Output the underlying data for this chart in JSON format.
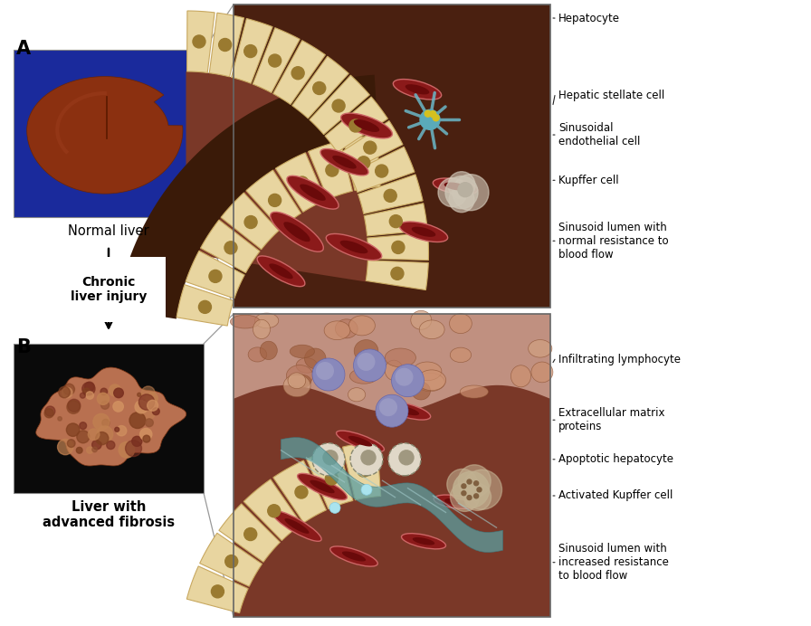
{
  "bg_color": "#ffffff",
  "label_A": "A",
  "label_B": "B",
  "text_normal_liver": "Normal liver",
  "text_chronic": "Chronic\nliver injury",
  "text_fibrosis": "Liver with\nadvanced fibrosis",
  "sinusoid_bg": "#5a2e18",
  "hepatocyte_fill": "#e8d5a0",
  "hepatocyte_edge": "#c8b070",
  "hepatocyte_nucleus": "#b09050",
  "blood_fill": "#8B1515",
  "blood_edge": "#cc6666",
  "stellate_color": "#6ab8c8",
  "lymphocyte_color": "#8888bb",
  "kupffer_color": "#c8bca8",
  "ecm_color": "#5b9ea0",
  "green_marker": "#558833",
  "outer_wall": "#3d2010",
  "normal_liver_bg": "#1a2a9c",
  "fibrosis_liver_bg": "#111111",
  "top_labels": [
    "Hepatocyte",
    "Hepatic stellate cell",
    "Sinusoidal\nendothelial cell",
    "Kupffer cell",
    "Sinusoid lumen with\nnormal resistance to\nblood flow"
  ],
  "bottom_labels": [
    "Infiltrating lymphocyte",
    "Extracellular matrix\nproteins",
    "Apoptotic hepatocyte",
    "Activated Kupffer cell",
    "Sinusoid lumen with\nincreased resistance\nto blood flow"
  ]
}
